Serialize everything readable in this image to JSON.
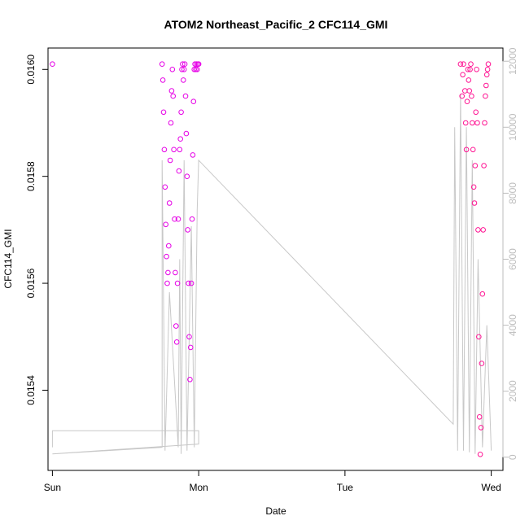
{
  "chart_data": {
    "type": "scatter",
    "title": "ATOM2 Northeast_Pacific_2 CFC114_GMI",
    "xlabel": "Date",
    "ylabel": "CFC114_GMI",
    "x_tick_labels": [
      "Sun",
      "Mon",
      "Tue",
      "Wed"
    ],
    "xlim_days": [
      -0.03,
      3.08
    ],
    "ylim": [
      0.01525,
      0.01604
    ],
    "y_ticks": [
      "0.0154",
      "0.0156",
      "0.0158",
      "0.0160"
    ],
    "y2_ticks": [
      "0",
      "2000",
      "4000",
      "6000",
      "8000",
      "10000",
      "12000"
    ],
    "y2lim": [
      -400,
      12400
    ],
    "colors": {
      "series_early": "#e600e6",
      "series_late": "#ff1493",
      "altitude": "#c8c8c8"
    },
    "series": [
      {
        "values": [
          [
            0.0,
            0.01601
          ],
          [
            0.75,
            0.01601
          ],
          [
            0.755,
            0.01598
          ],
          [
            0.76,
            0.01592
          ],
          [
            0.765,
            0.01585
          ],
          [
            0.77,
            0.01578
          ],
          [
            0.775,
            0.01571
          ],
          [
            0.78,
            0.01565
          ],
          [
            0.785,
            0.0156
          ],
          [
            0.79,
            0.01562
          ],
          [
            0.795,
            0.01567
          ],
          [
            0.8,
            0.01575
          ],
          [
            0.805,
            0.01583
          ],
          [
            0.81,
            0.0159
          ],
          [
            0.815,
            0.01596
          ],
          [
            0.82,
            0.016
          ],
          [
            0.825,
            0.01595
          ],
          [
            0.83,
            0.01585
          ],
          [
            0.835,
            0.01572
          ],
          [
            0.84,
            0.01562
          ],
          [
            0.845,
            0.01552
          ],
          [
            0.85,
            0.01549
          ],
          [
            0.855,
            0.0156
          ],
          [
            0.86,
            0.01572
          ],
          [
            0.865,
            0.01581
          ],
          [
            0.87,
            0.01585
          ],
          [
            0.875,
            0.01587
          ],
          [
            0.88,
            0.01592
          ],
          [
            0.885,
            0.016
          ],
          [
            0.89,
            0.01601
          ],
          [
            0.895,
            0.01598
          ],
          [
            0.9,
            0.016
          ],
          [
            0.905,
            0.01601
          ],
          [
            0.91,
            0.01595
          ],
          [
            0.915,
            0.01588
          ],
          [
            0.92,
            0.0158
          ],
          [
            0.925,
            0.0157
          ],
          [
            0.93,
            0.0156
          ],
          [
            0.935,
            0.0155
          ],
          [
            0.94,
            0.01542
          ],
          [
            0.945,
            0.01548
          ],
          [
            0.95,
            0.0156
          ],
          [
            0.955,
            0.01572
          ],
          [
            0.96,
            0.01584
          ],
          [
            0.965,
            0.01594
          ],
          [
            0.97,
            0.016
          ],
          [
            0.975,
            0.01601
          ],
          [
            0.98,
            0.016
          ],
          [
            0.985,
            0.01601
          ],
          [
            0.99,
            0.016
          ],
          [
            0.995,
            0.01601
          ],
          [
            1.0,
            0.01601
          ]
        ]
      },
      {
        "values": [
          [
            2.79,
            0.01601
          ],
          [
            2.8,
            0.01595
          ],
          [
            2.805,
            0.01599
          ],
          [
            2.81,
            0.01601
          ],
          [
            2.82,
            0.01596
          ],
          [
            2.825,
            0.0159
          ],
          [
            2.83,
            0.01585
          ],
          [
            2.835,
            0.01594
          ],
          [
            2.84,
            0.016
          ],
          [
            2.845,
            0.01598
          ],
          [
            2.85,
            0.01596
          ],
          [
            2.855,
            0.016
          ],
          [
            2.86,
            0.01601
          ],
          [
            2.865,
            0.01595
          ],
          [
            2.87,
            0.0159
          ],
          [
            2.875,
            0.01585
          ],
          [
            2.88,
            0.01578
          ],
          [
            2.885,
            0.01575
          ],
          [
            2.89,
            0.01582
          ],
          [
            2.895,
            0.01592
          ],
          [
            2.9,
            0.016
          ],
          [
            2.905,
            0.0159
          ],
          [
            2.91,
            0.0157
          ],
          [
            2.915,
            0.0155
          ],
          [
            2.92,
            0.01535
          ],
          [
            2.925,
            0.01528
          ],
          [
            2.93,
            0.01533
          ],
          [
            2.935,
            0.01545
          ],
          [
            2.94,
            0.01558
          ],
          [
            2.945,
            0.0157
          ],
          [
            2.95,
            0.01582
          ],
          [
            2.955,
            0.0159
          ],
          [
            2.96,
            0.01595
          ],
          [
            2.965,
            0.01597
          ],
          [
            2.97,
            0.01599
          ],
          [
            2.975,
            0.016
          ],
          [
            2.98,
            0.01601
          ]
        ]
      }
    ],
    "altitude_values": [
      [
        0.0,
        300
      ],
      [
        0.0,
        800
      ],
      [
        1.0,
        800
      ],
      [
        1.0,
        400
      ],
      [
        0.0,
        100
      ],
      [
        0.75,
        300
      ],
      [
        0.75,
        9000
      ],
      [
        0.77,
        200
      ],
      [
        0.8,
        5000
      ],
      [
        0.86,
        300
      ],
      [
        0.87,
        6000
      ],
      [
        0.88,
        100
      ],
      [
        0.9,
        9000
      ],
      [
        0.92,
        200
      ],
      [
        0.95,
        7000
      ],
      [
        0.97,
        300
      ],
      [
        0.99,
        7500
      ],
      [
        1.0,
        9000
      ],
      [
        2.74,
        1000
      ],
      [
        2.75,
        10000
      ],
      [
        2.77,
        200
      ],
      [
        2.79,
        11000
      ],
      [
        2.81,
        200
      ],
      [
        2.83,
        10000
      ],
      [
        2.85,
        150
      ],
      [
        2.87,
        9000
      ],
      [
        2.89,
        100
      ],
      [
        2.91,
        6000
      ],
      [
        2.94,
        300
      ],
      [
        2.97,
        4000
      ],
      [
        2.99,
        1500
      ],
      [
        3.0,
        200
      ]
    ]
  }
}
